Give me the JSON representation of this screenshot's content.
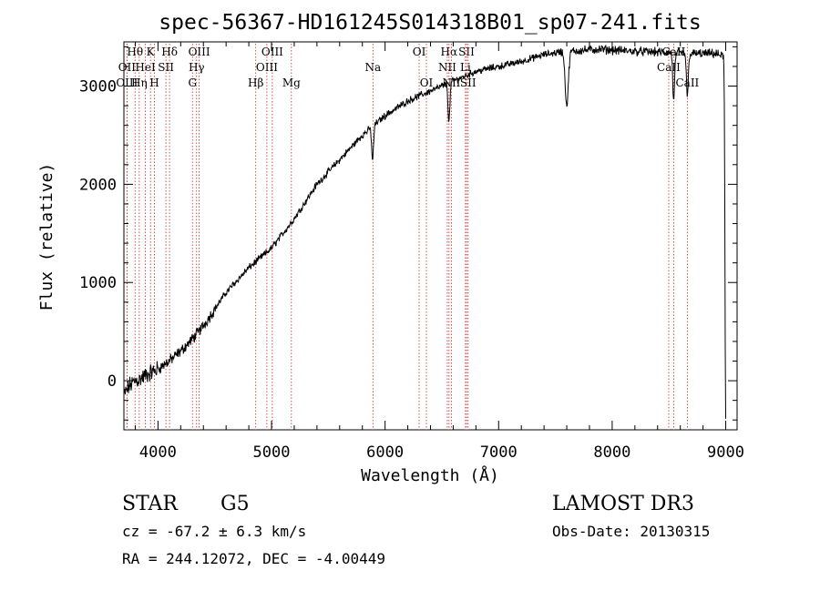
{
  "chart_data": {
    "type": "line",
    "title": "spec-56367-HD161245S014318B01_sp07-241.fits",
    "xlabel": "Wavelength (Å)",
    "ylabel": "Flux (relative)",
    "xlim": [
      3700,
      9100
    ],
    "ylim": [
      -500,
      3450
    ],
    "x_ticks": [
      4000,
      5000,
      6000,
      7000,
      8000,
      9000
    ],
    "x_tick_labels": [
      "4000",
      "5000",
      "6000",
      "7000",
      "8000",
      "9000"
    ],
    "y_ticks": [
      0,
      1000,
      2000,
      3000
    ],
    "y_tick_labels": [
      "0",
      "1000",
      "2000",
      "3000"
    ],
    "spectrum_anchor_points": {
      "x": [
        3700,
        3750,
        3800,
        3850,
        3900,
        4000,
        4100,
        4200,
        4300,
        4400,
        4600,
        4800,
        5000,
        5200,
        5400,
        5600,
        5800,
        6000,
        6200,
        6400,
        6600,
        6800,
        7000,
        7200,
        7400,
        7550,
        7700,
        7800,
        7900,
        8100,
        8300,
        8500,
        8700,
        8900,
        9000
      ],
      "y": [
        -150,
        -50,
        0,
        20,
        60,
        120,
        200,
        300,
        420,
        560,
        900,
        1150,
        1350,
        1650,
        2000,
        2250,
        2500,
        2700,
        2850,
        2950,
        3050,
        3150,
        3200,
        3250,
        3320,
        3350,
        3360,
        3370,
        3375,
        3360,
        3350,
        3340,
        3330,
        3330,
        3300
      ]
    },
    "absorption_features": [
      {
        "x": 5890,
        "depth": 350
      },
      {
        "x": 6563,
        "depth": 400
      },
      {
        "x": 7600,
        "depth": 550
      },
      {
        "x": 8542,
        "depth": 500
      },
      {
        "x": 8662,
        "depth": 450
      },
      {
        "x": 9000,
        "depth": 3700
      }
    ],
    "line_markers": [
      {
        "label": "Hθ",
        "x": 3798,
        "row": 0
      },
      {
        "label": "OII",
        "x": 3727,
        "row": 1
      },
      {
        "label": "OIII",
        "x": 3727,
        "row": 2
      },
      {
        "label": "Hη",
        "x": 3835,
        "row": 2
      },
      {
        "label": "HeI",
        "x": 3889,
        "row": 1
      },
      {
        "label": "K",
        "x": 3934,
        "row": 0
      },
      {
        "label": "H",
        "x": 3969,
        "row": 2
      },
      {
        "label": "SII",
        "x": 4070,
        "row": 1
      },
      {
        "label": "Hδ",
        "x": 4102,
        "row": 0
      },
      {
        "label": "OIII",
        "x": 4363,
        "row": 0
      },
      {
        "label": "Hγ",
        "x": 4340,
        "row": 1
      },
      {
        "label": "G",
        "x": 4304,
        "row": 2
      },
      {
        "label": "Hβ",
        "x": 4861,
        "row": 2
      },
      {
        "label": "OIII",
        "x": 5007,
        "row": 0
      },
      {
        "label": "OIII",
        "x": 4959,
        "row": 1
      },
      {
        "label": "Mg",
        "x": 5175,
        "row": 2
      },
      {
        "label": "Na",
        "x": 5893,
        "row": 1
      },
      {
        "label": "OI",
        "x": 6300,
        "row": 0
      },
      {
        "label": "OI",
        "x": 6364,
        "row": 2
      },
      {
        "label": "Hα",
        "x": 6563,
        "row": 0
      },
      {
        "label": "NII",
        "x": 6548,
        "row": 1
      },
      {
        "label": "NII",
        "x": 6584,
        "row": 2
      },
      {
        "label": "SII",
        "x": 6717,
        "row": 0
      },
      {
        "label": "Li",
        "x": 6708,
        "row": 1
      },
      {
        "label": "SII",
        "x": 6731,
        "row": 2
      },
      {
        "label": "CaII",
        "x": 8542,
        "row": 0
      },
      {
        "label": "CaII",
        "x": 8498,
        "row": 1
      },
      {
        "label": "CaII",
        "x": 8662,
        "row": 2
      }
    ]
  },
  "info": {
    "object_type": "STAR",
    "subclass": "G5",
    "survey": "LAMOST DR3",
    "cz": "cz = -67.2 ± 6.3 km/s",
    "obs_date": "Obs-Date: 20130315",
    "coords": "RA = 244.12072, DEC =  -4.00449"
  }
}
